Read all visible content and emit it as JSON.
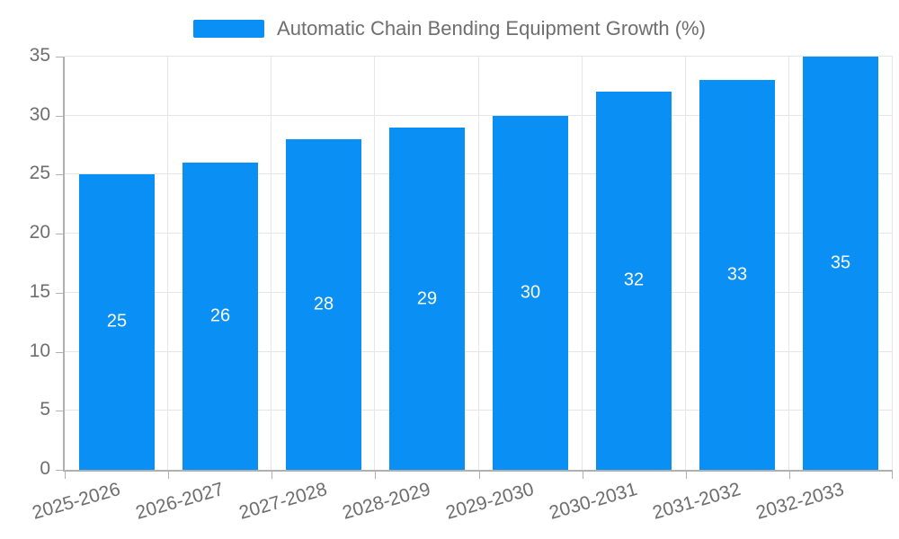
{
  "chart_data": {
    "type": "bar",
    "title": "",
    "legend": {
      "label": "Automatic Chain Bending Equipment Growth (%)",
      "position": "top"
    },
    "categories": [
      "2025-2026",
      "2026-2027",
      "2027-2028",
      "2028-2029",
      "2029-2030",
      "2030-2031",
      "2031-2032",
      "2032-2033"
    ],
    "series": [
      {
        "name": "Automatic Chain Bending Equipment Growth (%)",
        "values": [
          25,
          26,
          28,
          29,
          30,
          32,
          33,
          35
        ]
      }
    ],
    "value_labels_shown": true,
    "xlabel": "",
    "ylabel": "",
    "ylim": [
      0,
      35
    ],
    "yticks": [
      0,
      5,
      10,
      15,
      20,
      25,
      30,
      35
    ],
    "grid": true,
    "x_tick_rotation_deg": -16
  },
  "colors": {
    "bar": "#0a90f5",
    "bar_value_text": "#ffffff",
    "axis_text": "#6e6e6e",
    "axis_line": "#b0b0b0",
    "gridline": "#e6e6e6",
    "background": "#ffffff"
  }
}
